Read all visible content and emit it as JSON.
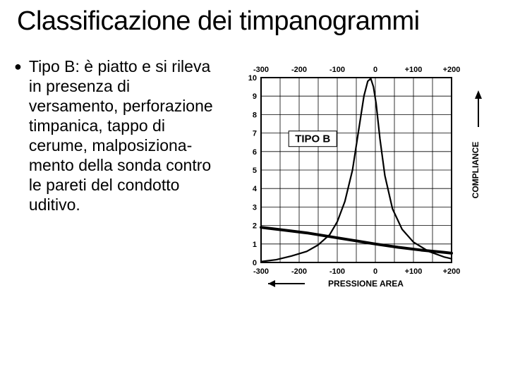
{
  "title": "Classificazione dei timpanogrammi",
  "bullet_text": "Tipo B: è piatto e si rileva in presenza di versamento, perforazione timpanica, tappo di cerume, malposiziona-mento della sonda contro le pareti del condotto uditivo.",
  "chart": {
    "type": "line",
    "label_inside": "TIPO B",
    "x_axis_label": "PRESSIONE AREA",
    "y_axis_label": "COMPLIANCE",
    "x_ticks_top": [
      "-300",
      "-200",
      "-100",
      "0",
      "+100",
      "+200"
    ],
    "x_ticks_bottom": [
      "-300",
      "-200",
      "-100",
      "0",
      "+100",
      "+200"
    ],
    "y_ticks": [
      "0",
      "1",
      "2",
      "3",
      "4",
      "5",
      "6",
      "7",
      "8",
      "9",
      "10"
    ],
    "xlim": [
      -300,
      200
    ],
    "ylim": [
      0,
      10
    ],
    "background_color": "#ffffff",
    "grid_color": "#000000",
    "grid_stroke": 0.8,
    "frame_stroke": 2.0,
    "tick_font_size": 11,
    "axis_label_font_size": 12,
    "inside_label_font_size": 15,
    "typeA_curve": {
      "color": "#000000",
      "stroke": 2.2,
      "points": [
        [
          -300,
          0.05
        ],
        [
          -260,
          0.15
        ],
        [
          -220,
          0.35
        ],
        [
          -180,
          0.6
        ],
        [
          -150,
          0.95
        ],
        [
          -120,
          1.5
        ],
        [
          -100,
          2.2
        ],
        [
          -80,
          3.3
        ],
        [
          -60,
          5.0
        ],
        [
          -45,
          7.0
        ],
        [
          -30,
          9.0
        ],
        [
          -20,
          9.8
        ],
        [
          -12,
          9.95
        ],
        [
          -5,
          9.5
        ],
        [
          2,
          8.6
        ],
        [
          12,
          6.7
        ],
        [
          25,
          4.7
        ],
        [
          45,
          2.9
        ],
        [
          70,
          1.8
        ],
        [
          100,
          1.1
        ],
        [
          140,
          0.6
        ],
        [
          180,
          0.3
        ],
        [
          200,
          0.2
        ]
      ]
    },
    "typeB_curve": {
      "color": "#000000",
      "stroke": 4.0,
      "points": [
        [
          -300,
          1.9
        ],
        [
          -240,
          1.75
        ],
        [
          -180,
          1.6
        ],
        [
          -120,
          1.4
        ],
        [
          -60,
          1.2
        ],
        [
          0,
          1.0
        ],
        [
          60,
          0.82
        ],
        [
          120,
          0.67
        ],
        [
          180,
          0.55
        ],
        [
          200,
          0.5
        ]
      ]
    }
  }
}
